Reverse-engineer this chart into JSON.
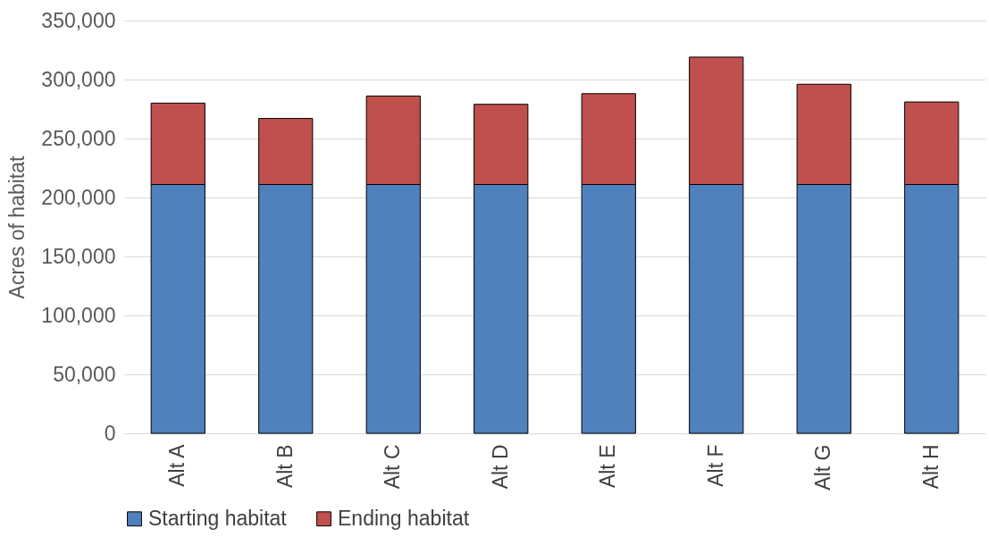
{
  "chart_data": {
    "type": "bar",
    "stacked": true,
    "ylabel": "Acres of habitat",
    "categories": [
      "Alt A",
      "Alt B",
      "Alt C",
      "Alt D",
      "Alt E",
      "Alt F",
      "Alt G",
      "Alt H"
    ],
    "series": [
      {
        "name": "Starting habitat",
        "color": "#4f81bd",
        "values": [
          211000,
          211000,
          211000,
          211000,
          211000,
          211000,
          211000,
          211000
        ]
      },
      {
        "name": "Ending habitat",
        "color": "#c0504d",
        "values": [
          69000,
          56000,
          75000,
          68000,
          77000,
          108000,
          85000,
          70000
        ]
      }
    ],
    "ylim": [
      0,
      350000
    ],
    "yticks": [
      {
        "value": 0,
        "label": "0"
      },
      {
        "value": 50000,
        "label": "50,000"
      },
      {
        "value": 100000,
        "label": "100,000"
      },
      {
        "value": 150000,
        "label": "150,000"
      },
      {
        "value": 200000,
        "label": "200,000"
      },
      {
        "value": 250000,
        "label": "250,000"
      },
      {
        "value": 300000,
        "label": "300,000"
      },
      {
        "value": 350000,
        "label": "350,000"
      }
    ],
    "grid": "y",
    "legend": "bottom"
  }
}
